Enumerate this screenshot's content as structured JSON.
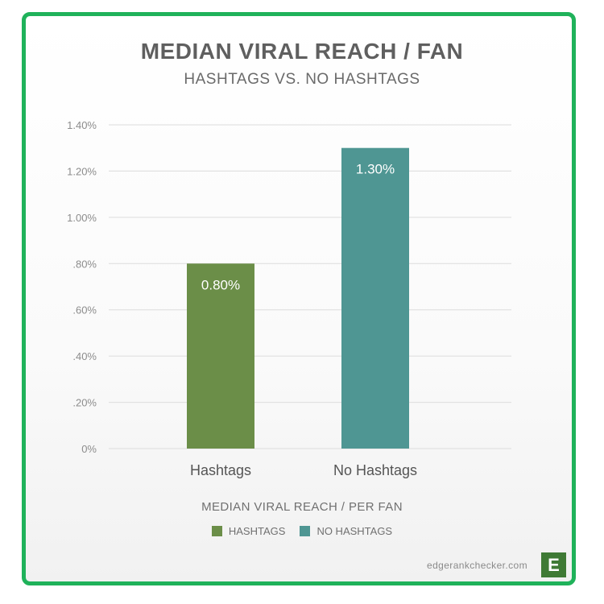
{
  "chart_data": {
    "type": "bar",
    "title": "MEDIAN VIRAL REACH / FAN",
    "subtitle": "HASHTAGS VS. NO HASHTAGS",
    "categories": [
      "Hashtags",
      "No Hashtags"
    ],
    "values": [
      0.8,
      1.3
    ],
    "value_labels": [
      "0.80%",
      "1.30%"
    ],
    "colors": [
      "#6b8e48",
      "#4f9693"
    ],
    "ylim": [
      0,
      1.4
    ],
    "yticks": [
      0,
      0.2,
      0.4,
      0.6,
      0.8,
      1.0,
      1.2,
      1.4
    ],
    "ytick_labels": [
      "0%",
      ".20%",
      ".40%",
      ".60%",
      ".80%",
      "1.00%",
      "1.20%",
      "1.40%"
    ],
    "grid": true,
    "legend_title": "MEDIAN VIRAL REACH / PER FAN",
    "legend": [
      {
        "label": "HASHTAGS",
        "color": "#6b8e48"
      },
      {
        "label": "NO HASHTAGS",
        "color": "#4f9693"
      }
    ],
    "legend_position": "bottom"
  },
  "footer": {
    "source": "edgerankchecker.com",
    "logo_letter": "E",
    "logo_color": "#3f7a35"
  },
  "frame_color": "#1fb25a"
}
